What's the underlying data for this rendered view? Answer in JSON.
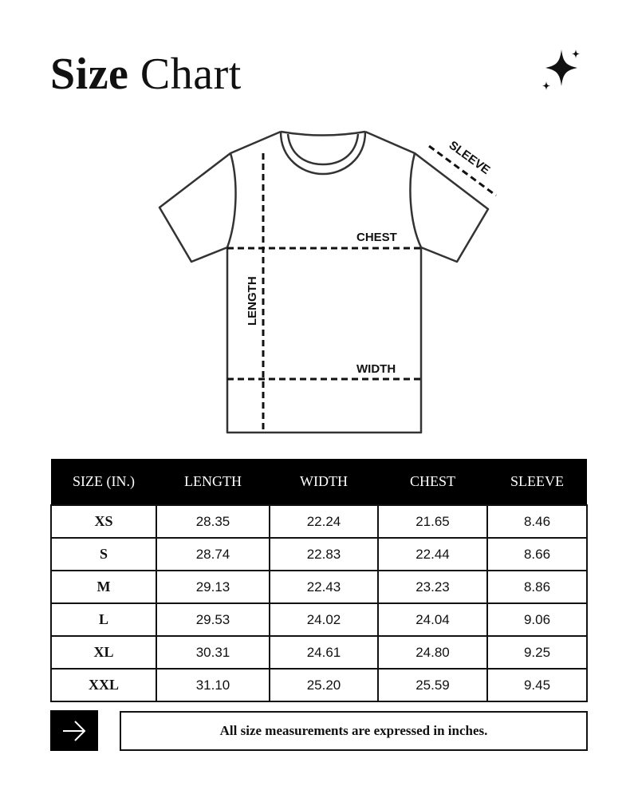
{
  "title": {
    "bold": "Size",
    "regular": "Chart"
  },
  "diagram": {
    "sleeve": "SLEEVE",
    "chest": "CHEST",
    "length": "LENGTH",
    "width": "WIDTH"
  },
  "table": {
    "headers": [
      "SIZE (IN.)",
      "LENGTH",
      "WIDTH",
      "CHEST",
      "SLEEVE"
    ],
    "rows": [
      [
        "XS",
        "28.35",
        "22.24",
        "21.65",
        "8.46"
      ],
      [
        "S",
        "28.74",
        "22.83",
        "22.44",
        "8.66"
      ],
      [
        "M",
        "29.13",
        "22.43",
        "23.23",
        "8.86"
      ],
      [
        "L",
        "29.53",
        "24.02",
        "24.04",
        "9.06"
      ],
      [
        "XL",
        "30.31",
        "24.61",
        "24.80",
        "9.25"
      ],
      [
        "XXL",
        "31.10",
        "25.20",
        "25.59",
        "9.45"
      ]
    ]
  },
  "footer": {
    "note": "All size measurements are expressed in inches.",
    "arrow_icon": "arrow-right-icon"
  },
  "icons": {
    "decoration": "sparkle-icon"
  }
}
